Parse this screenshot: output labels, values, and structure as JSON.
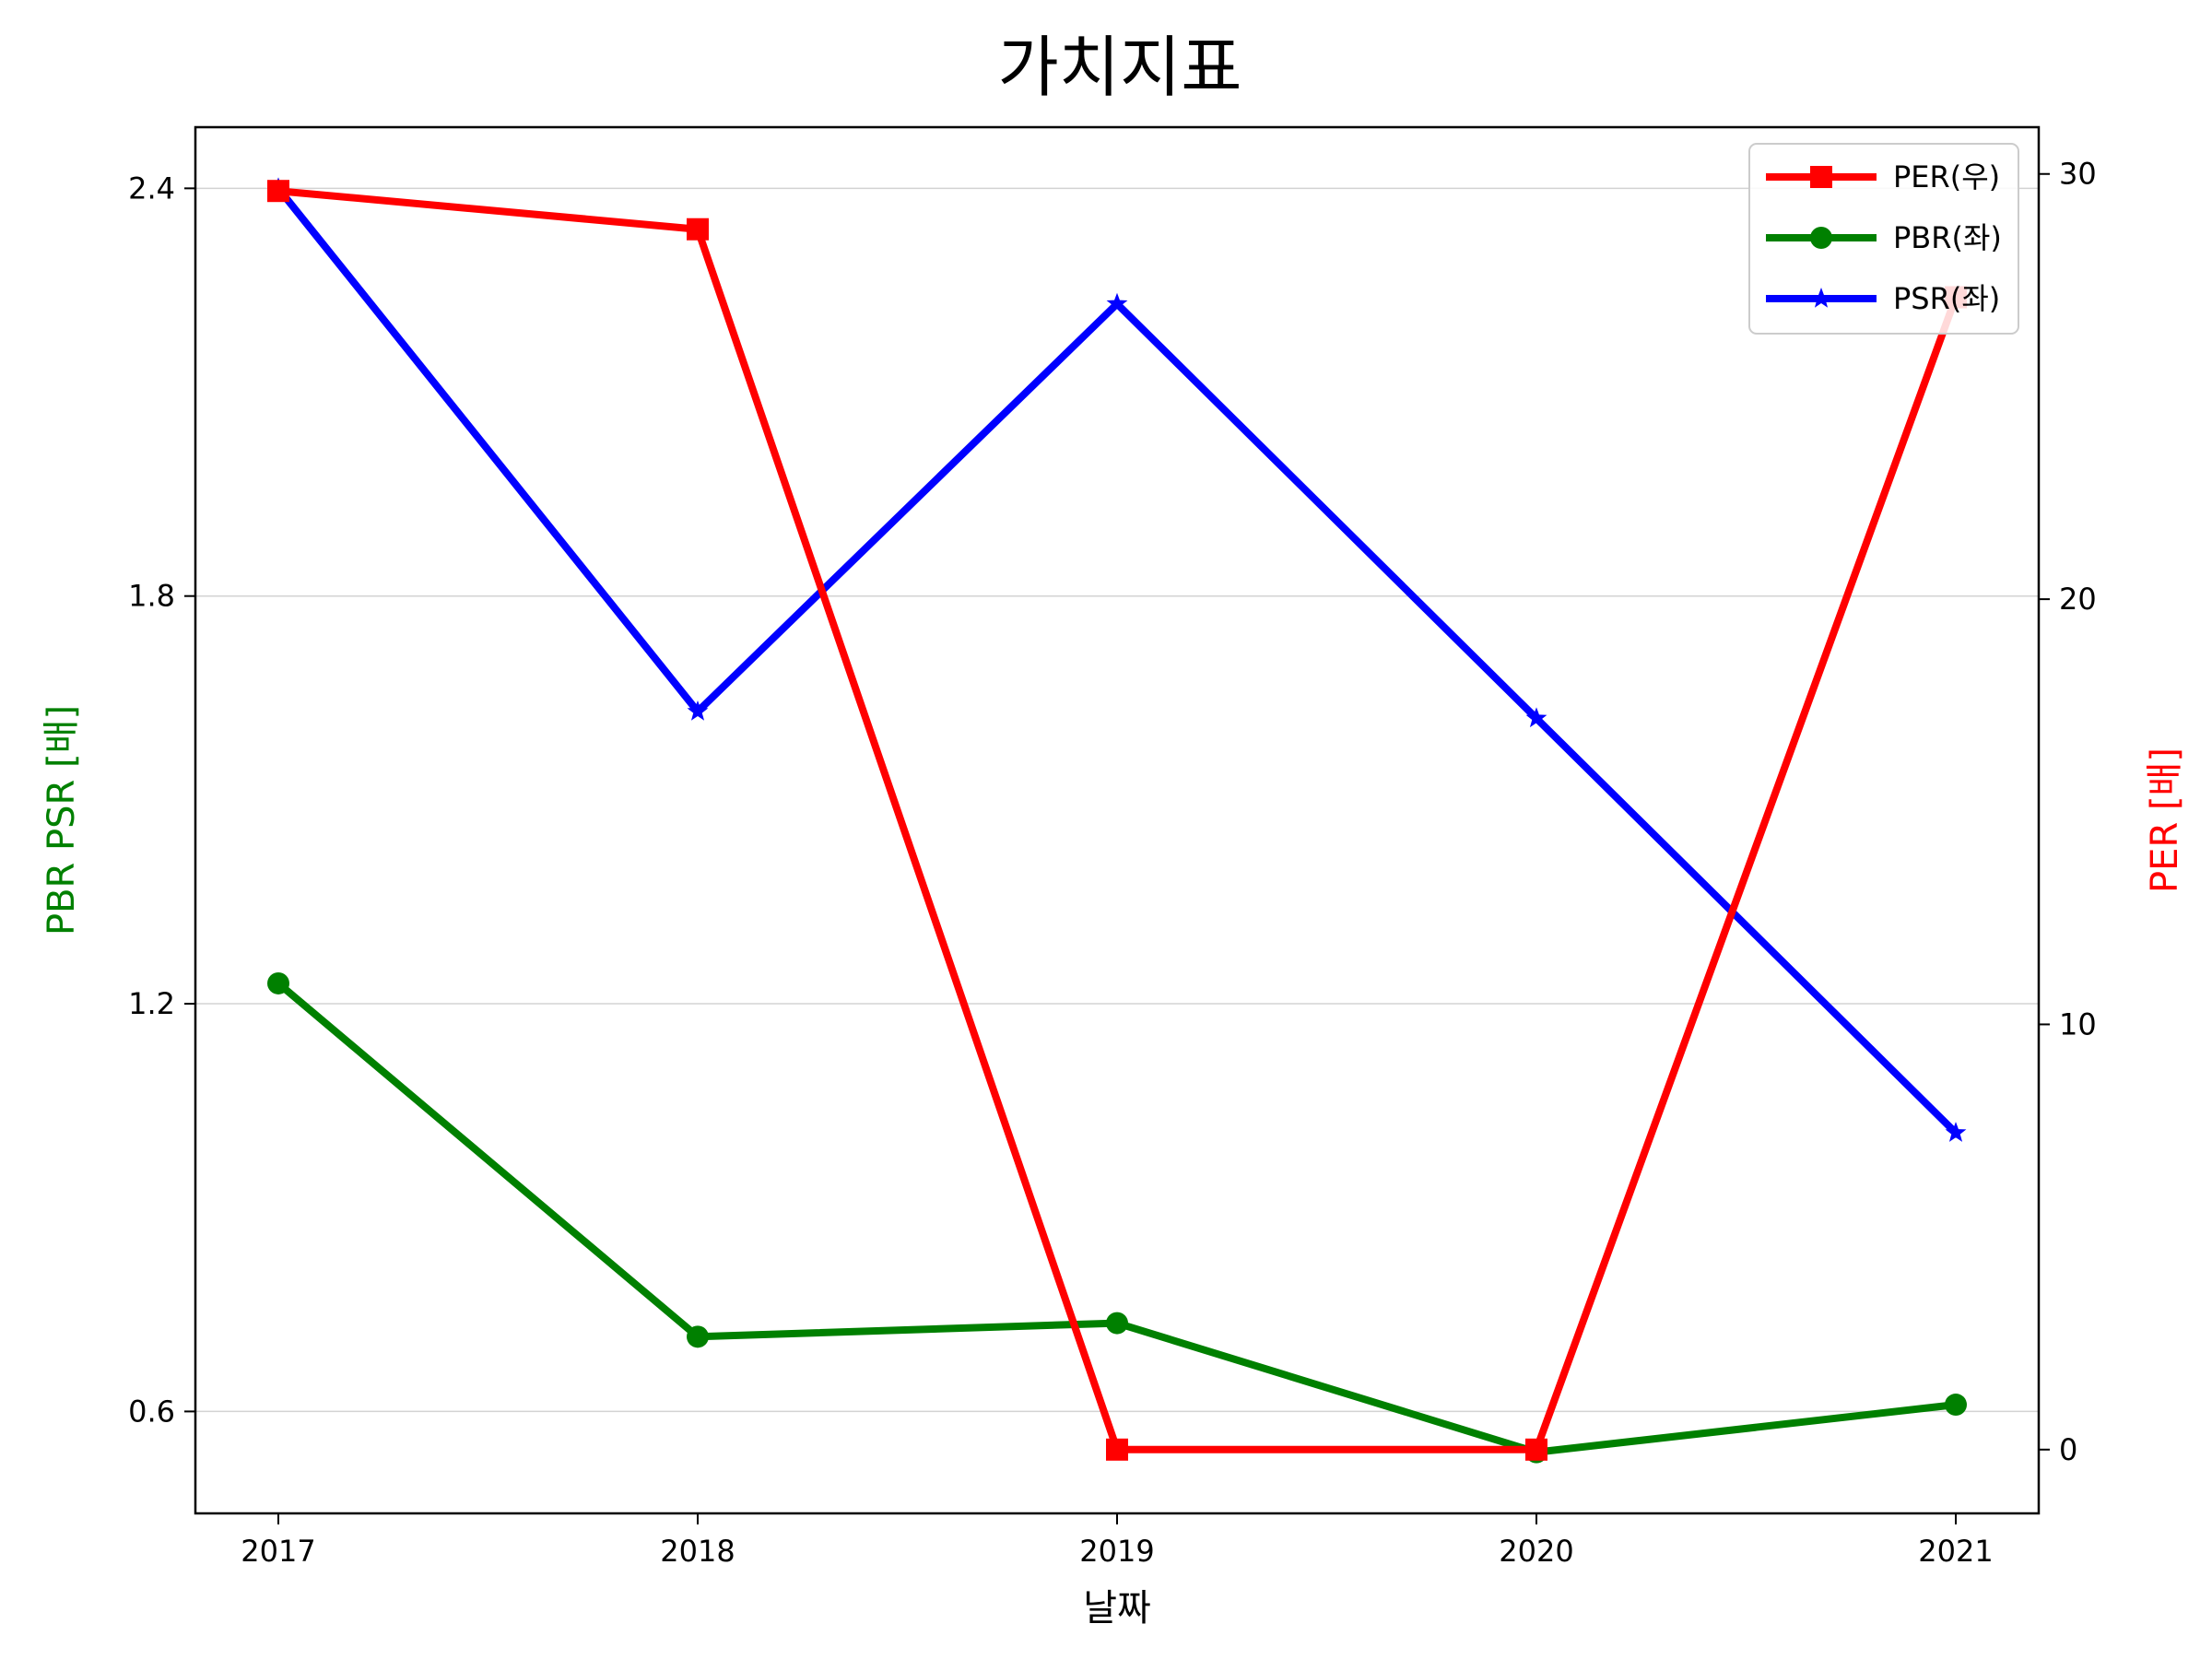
{
  "colors": {
    "per": "#ff0000",
    "pbr": "#008000",
    "psr": "#0000ff",
    "grid": "#d3d3d3",
    "axis": "#000000"
  },
  "chart_data": {
    "type": "line",
    "title": "가치지표",
    "xlabel": "날짜",
    "ylabel_left": "PBR PSR [배]",
    "ylabel_right": "PER [배]",
    "x": [
      "2017",
      "2018",
      "2019",
      "2020",
      "2021"
    ],
    "ylim_left": [
      0.45,
      2.49
    ],
    "ylim_right": [
      -1.5,
      31.1
    ],
    "yticks_left": [
      "0.6",
      "1.2",
      "1.8",
      "2.4"
    ],
    "yticks_right": [
      "0",
      "10",
      "20",
      "30"
    ],
    "grid": true,
    "legend_position": "top-right",
    "series": [
      {
        "name": "PER(우)",
        "axis": "right",
        "marker": "square",
        "color": "#ff0000",
        "values": [
          29.6,
          28.7,
          0.0,
          0.0,
          27.1
        ]
      },
      {
        "name": "PBR(좌)",
        "axis": "left",
        "marker": "circle",
        "color": "#008000",
        "values": [
          1.23,
          0.71,
          0.73,
          0.54,
          0.61
        ]
      },
      {
        "name": "PSR(좌)",
        "axis": "left",
        "marker": "star",
        "color": "#0000ff",
        "values": [
          2.4,
          1.63,
          2.23,
          1.62,
          1.01
        ]
      }
    ]
  }
}
